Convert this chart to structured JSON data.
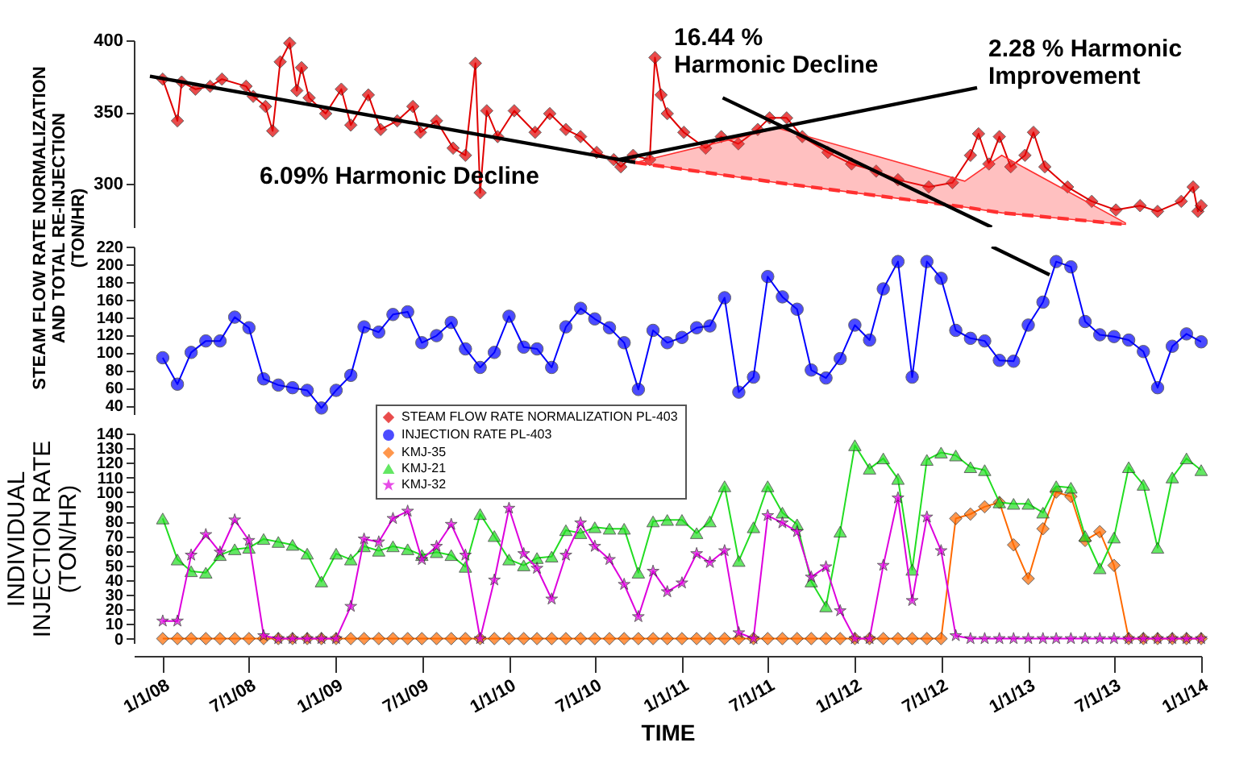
{
  "chart_data": [
    {
      "type": "line",
      "xlim": [
        "2007-11-01",
        "2014-01-01"
      ],
      "ylim": [
        270,
        400
      ],
      "yticks": [
        300,
        350,
        400
      ],
      "tick_labels": "y",
      "annotations": [
        "6.09% Harmonic Decline",
        "16.44 %\nHarmonic Decline",
        "2.28 % Harmonic\nImprovement"
      ],
      "series": [
        {
          "name": "STEAM FLOW RATE NORMALIZATION PL-403",
          "color": "#e00000",
          "marker": "diamond",
          "x": [
            "2008-01-01",
            "2008-02-01",
            "2008-02-10",
            "2008-03-10",
            "2008-04-10",
            "2008-05-05",
            "2008-06-25",
            "2008-07-10",
            "2008-08-05",
            "2008-08-20",
            "2008-09-05",
            "2008-09-25",
            "2008-10-10",
            "2008-10-20",
            "2008-11-05",
            "2008-12-10",
            "2009-01-12",
            "2009-02-01",
            "2009-03-10",
            "2009-04-05",
            "2009-05-10",
            "2009-06-12",
            "2009-06-28",
            "2009-08-01",
            "2009-09-05",
            "2009-10-01",
            "2009-10-22",
            "2009-11-01",
            "2009-11-15",
            "2009-12-08",
            "2010-01-12",
            "2010-02-25",
            "2010-03-28",
            "2010-05-01",
            "2010-06-01",
            "2010-07-05",
            "2010-08-10",
            "2010-08-25",
            "2010-09-20",
            "2010-10-25",
            "2010-11-05",
            "2010-11-18",
            "2010-12-01",
            "2011-01-05",
            "2011-02-20",
            "2011-03-25",
            "2011-04-30",
            "2011-06-10",
            "2011-07-05",
            "2011-08-10",
            "2011-09-12",
            "2011-11-05",
            "2011-12-25",
            "2012-02-15",
            "2012-04-01",
            "2012-06-05",
            "2012-07-25",
            "2012-09-01",
            "2012-09-18",
            "2012-10-10",
            "2012-11-01",
            "2012-11-25",
            "2012-12-25",
            "2013-01-12",
            "2013-02-05",
            "2013-03-25",
            "2013-05-15",
            "2013-07-05",
            "2013-08-25",
            "2013-10-01",
            "2013-11-20",
            "2013-12-15",
            "2013-12-25",
            "2014-01-01"
          ],
          "values": [
            373,
            344,
            371,
            366,
            368,
            373,
            368,
            361,
            354,
            337,
            385,
            398,
            365,
            381,
            360,
            349,
            366,
            341,
            362,
            338,
            344,
            354,
            336,
            344,
            325,
            320,
            384,
            294,
            351,
            333,
            351,
            336,
            349,
            338,
            333,
            322,
            317,
            312,
            320,
            317,
            388,
            362,
            349,
            336,
            325,
            333,
            328,
            338,
            346,
            346,
            333,
            322,
            314,
            309,
            303,
            298,
            301,
            320,
            335,
            314,
            333,
            312,
            320,
            336,
            312,
            298,
            288,
            282,
            285,
            281,
            288,
            298,
            281,
            285
          ]
        },
        {
          "type": "line",
          "color": "#000000",
          "marker": "none",
          "x": [
            "2007-12-05",
            "2010-09-25"
          ],
          "values": [
            375,
            315
          ]
        },
        {
          "type": "line",
          "color": "#ff3030",
          "marker": "none",
          "line_style": "dashed",
          "x": [
            "2010-09-25",
            "2011-07-22",
            "2012-08-20",
            "2012-11-06",
            "2013-07-25"
          ],
          "values": [
            315,
            301,
            284,
            280,
            272
          ],
          "lower": [
            315,
            301,
            284,
            280,
            272
          ],
          "upper": [
            315,
            339,
            302,
            320,
            273
          ]
        },
        {
          "type": "line",
          "color": "#000000",
          "marker": "none",
          "x": [
            "2011-03-28",
            "2012-10-16"
          ],
          "values": [
            360,
            270
          ]
        },
        {
          "type": "line",
          "color": "#000000",
          "marker": "none",
          "x": [
            "2010-08-20",
            "2012-09-15"
          ],
          "values": [
            317,
            367
          ]
        }
      ]
    },
    {
      "type": "line",
      "xlim": [
        "2007-11-01",
        "2014-01-01"
      ],
      "ylim": [
        30,
        220
      ],
      "yticks": [
        40,
        60,
        80,
        100,
        120,
        140,
        160,
        180,
        200,
        220
      ],
      "tick_labels": "y",
      "ylabel": "STEAM FLOW RATE NORMALIZATION\nAND TOTAL RE-INJECTION\n(TON/HR)",
      "x": [
        "2008-01-01",
        "2008-02-01",
        "2008-03-01",
        "2008-04-01",
        "2008-05-01",
        "2008-06-01",
        "2008-07-01",
        "2008-08-01",
        "2008-09-01",
        "2008-10-01",
        "2008-11-01",
        "2008-12-01",
        "2009-01-01",
        "2009-02-01",
        "2009-03-01",
        "2009-04-01",
        "2009-05-01",
        "2009-06-01",
        "2009-07-01",
        "2009-08-01",
        "2009-09-01",
        "2009-10-01",
        "2009-11-01",
        "2009-12-01",
        "2010-01-01",
        "2010-02-01",
        "2010-03-01",
        "2010-04-01",
        "2010-05-01",
        "2010-06-01",
        "2010-07-01",
        "2010-08-01",
        "2010-09-01",
        "2010-10-01",
        "2010-11-01",
        "2010-12-01",
        "2011-01-01",
        "2011-02-01",
        "2011-03-01",
        "2011-04-01",
        "2011-05-01",
        "2011-06-01",
        "2011-07-01",
        "2011-08-01",
        "2011-09-01",
        "2011-10-01",
        "2011-11-01",
        "2011-12-01",
        "2012-01-01",
        "2012-02-01",
        "2012-03-01",
        "2012-04-01",
        "2012-05-01",
        "2012-06-01",
        "2012-07-01",
        "2012-08-01",
        "2012-09-01",
        "2012-10-01",
        "2012-11-01",
        "2012-12-01",
        "2013-01-01",
        "2013-02-01",
        "2013-03-01",
        "2013-04-01",
        "2013-05-01",
        "2013-06-01",
        "2013-07-01",
        "2013-08-01",
        "2013-09-01",
        "2013-10-01",
        "2013-11-01",
        "2013-12-01",
        "2014-01-01"
      ],
      "series": [
        {
          "name": "INJECTION RATE PL-403",
          "color": "#0000ff",
          "marker": "circle",
          "values": [
            94,
            64,
            100,
            113,
            113,
            140,
            128,
            70,
            63,
            60,
            57,
            37,
            57,
            74,
            129,
            123,
            143,
            146,
            111,
            119,
            134,
            104,
            83,
            100,
            141,
            106,
            104,
            83,
            129,
            150,
            138,
            128,
            111,
            58,
            125,
            111,
            117,
            128,
            130,
            162,
            55,
            72,
            186,
            163,
            149,
            80,
            71,
            93,
            131,
            114,
            172,
            203,
            72,
            203,
            184,
            125,
            116,
            113,
            91,
            90,
            131,
            157,
            203,
            197,
            135,
            120,
            118,
            114,
            101,
            60,
            107,
            121,
            112
          ]
        },
        {
          "type": "line",
          "color": "#000000",
          "marker": "none",
          "x": [
            "2012-10-16",
            "2013-02-15"
          ],
          "values": [
            220,
            188
          ]
        }
      ]
    },
    {
      "type": "line",
      "xlim": [
        "2007-11-01",
        "2014-01-01"
      ],
      "xticks": [
        {
          "value": "2008-01-01",
          "label": "1/1/08"
        },
        {
          "value": "2008-07-01",
          "label": "7/1/08"
        },
        {
          "value": "2009-01-01",
          "label": "1/1/09"
        },
        {
          "value": "2009-07-01",
          "label": "7/1/09"
        },
        {
          "value": "2010-01-01",
          "label": "1/1/10"
        },
        {
          "value": "2010-07-01",
          "label": "7/1/10"
        },
        {
          "value": "2011-01-01",
          "label": "1/1/11"
        },
        {
          "value": "2011-07-01",
          "label": "7/1/11"
        },
        {
          "value": "2012-01-01",
          "label": "1/1/12"
        },
        {
          "value": "2012-07-01",
          "label": "7/1/12"
        },
        {
          "value": "2013-01-01",
          "label": "1/1/13"
        },
        {
          "value": "2013-07-01",
          "label": "7/1/13"
        },
        {
          "value": "2014-01-01",
          "label": "1/1/14"
        }
      ],
      "ylim": [
        -3,
        140
      ],
      "yticks": [
        0,
        10,
        20,
        30,
        40,
        50,
        60,
        70,
        80,
        90,
        100,
        110,
        120,
        130,
        140
      ],
      "xlabel": "TIME",
      "ylabel": "INDIVIDUAL\nINJECTION RATE\n(TON/HR)",
      "legend": "top",
      "x": [
        "2008-01-01",
        "2008-02-01",
        "2008-03-01",
        "2008-04-01",
        "2008-05-01",
        "2008-06-01",
        "2008-07-01",
        "2008-08-01",
        "2008-09-01",
        "2008-10-01",
        "2008-11-01",
        "2008-12-01",
        "2009-01-01",
        "2009-02-01",
        "2009-03-01",
        "2009-04-01",
        "2009-05-01",
        "2009-06-01",
        "2009-07-01",
        "2009-08-01",
        "2009-09-01",
        "2009-10-01",
        "2009-11-01",
        "2009-12-01",
        "2010-01-01",
        "2010-02-01",
        "2010-03-01",
        "2010-04-01",
        "2010-05-01",
        "2010-06-01",
        "2010-07-01",
        "2010-08-01",
        "2010-09-01",
        "2010-10-01",
        "2010-11-01",
        "2010-12-01",
        "2011-01-01",
        "2011-02-01",
        "2011-03-01",
        "2011-04-01",
        "2011-05-01",
        "2011-06-01",
        "2011-07-01",
        "2011-08-01",
        "2011-09-01",
        "2011-10-01",
        "2011-11-01",
        "2011-12-01",
        "2012-01-01",
        "2012-02-01",
        "2012-03-01",
        "2012-04-01",
        "2012-05-01",
        "2012-06-01",
        "2012-07-01",
        "2012-08-01",
        "2012-09-01",
        "2012-10-01",
        "2012-11-01",
        "2012-12-01",
        "2013-01-01",
        "2013-02-01",
        "2013-03-01",
        "2013-04-01",
        "2013-05-01",
        "2013-06-01",
        "2013-07-01",
        "2013-08-01",
        "2013-09-01",
        "2013-10-01",
        "2013-11-01",
        "2013-12-01",
        "2014-01-01"
      ],
      "series": [
        {
          "name": "KMJ-35",
          "color": "#ff6a00",
          "marker": "diamond",
          "values": [
            0,
            0,
            0,
            0,
            0,
            0,
            0,
            0,
            0,
            0,
            0,
            0,
            0,
            0,
            0,
            0,
            0,
            0,
            0,
            0,
            0,
            0,
            0,
            0,
            0,
            0,
            0,
            0,
            0,
            0,
            0,
            0,
            0,
            0,
            0,
            0,
            0,
            0,
            0,
            0,
            0,
            0,
            0,
            0,
            0,
            0,
            0,
            0,
            0,
            0,
            0,
            0,
            0,
            0,
            0,
            82,
            85,
            90,
            93,
            64,
            41,
            75,
            100,
            97,
            67,
            73,
            50,
            0,
            0,
            0,
            0,
            0,
            0
          ]
        },
        {
          "name": "KMJ-21",
          "color": "#22dd22",
          "marker": "triangle",
          "values": [
            82,
            54,
            46,
            45,
            57,
            61,
            62,
            68,
            66,
            64,
            58,
            39,
            58,
            54,
            63,
            60,
            63,
            61,
            57,
            59,
            57,
            49,
            85,
            70,
            54,
            50,
            55,
            56,
            74,
            72,
            76,
            75,
            75,
            45,
            80,
            81,
            81,
            72,
            80,
            104,
            53,
            76,
            104,
            86,
            78,
            39,
            22,
            73,
            132,
            116,
            123,
            109,
            47,
            122,
            127,
            125,
            117,
            115,
            93,
            92,
            92,
            86,
            104,
            103,
            70,
            48,
            69,
            117,
            105,
            62,
            110,
            123,
            115
          ]
        },
        {
          "name": "KMJ-32",
          "color": "#dd00dd",
          "marker": "star",
          "values": [
            12,
            12,
            57,
            71,
            59,
            81,
            67,
            2,
            0,
            0,
            0,
            0,
            0,
            22,
            68,
            66,
            82,
            87,
            54,
            63,
            78,
            57,
            0,
            40,
            89,
            58,
            48,
            27,
            57,
            79,
            63,
            54,
            37,
            15,
            46,
            32,
            38,
            58,
            52,
            60,
            4,
            0,
            84,
            79,
            73,
            42,
            49,
            19,
            0,
            0,
            50,
            96,
            26,
            83,
            60,
            2,
            0,
            0,
            0,
            0,
            0,
            0,
            0,
            0,
            0,
            0,
            0,
            0,
            0,
            0,
            0,
            0,
            0
          ]
        }
      ]
    }
  ]
}
